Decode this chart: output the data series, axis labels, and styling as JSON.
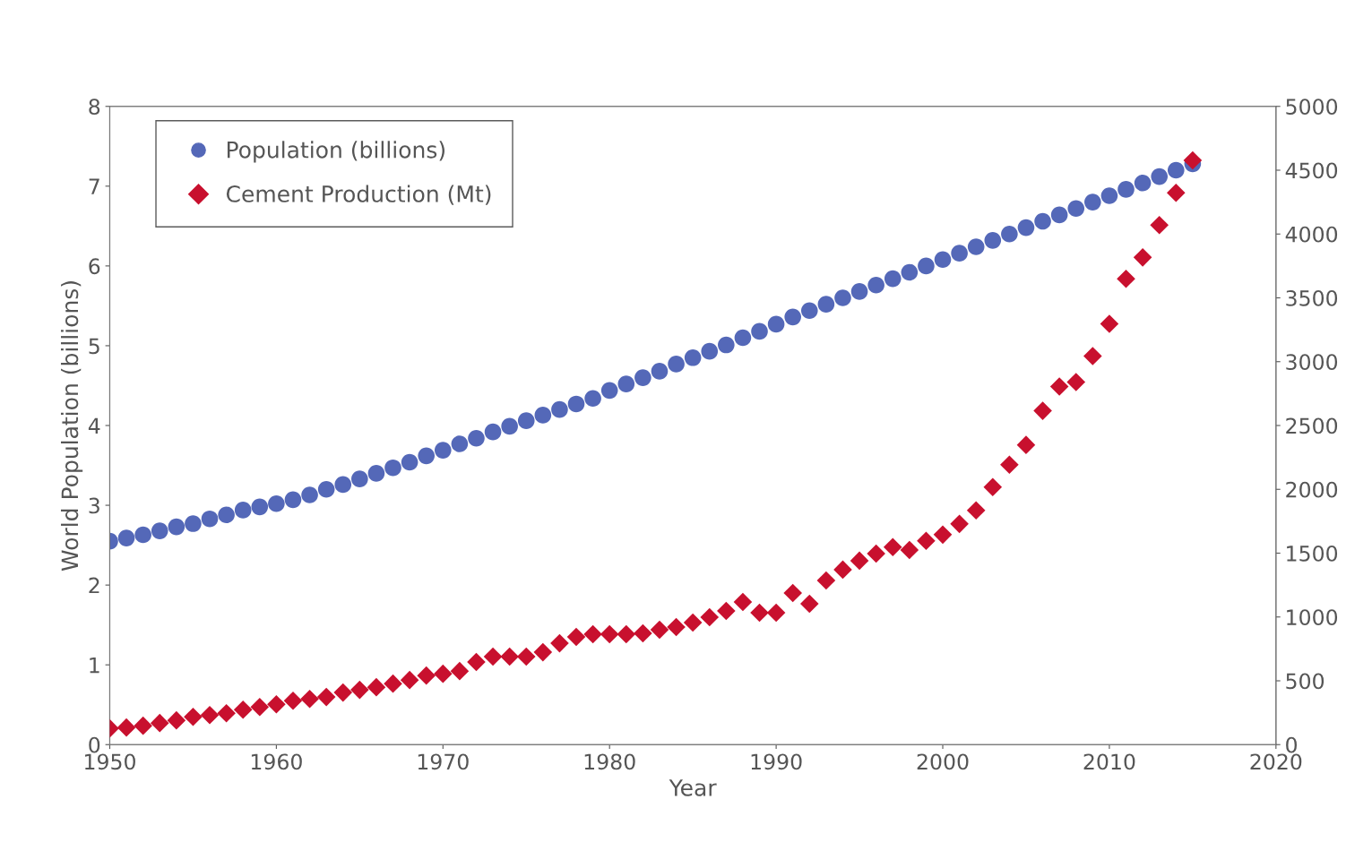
{
  "chart_data": {
    "type": "scatter",
    "xlabel": "Year",
    "ylabel": "World Population (billions)",
    "xlim": [
      1950,
      2020
    ],
    "xticks": [
      1950,
      1960,
      1970,
      1980,
      1990,
      2000,
      2010,
      2020
    ],
    "ylim": [
      0,
      8
    ],
    "yticks": [
      0,
      1,
      2,
      3,
      4,
      5,
      6,
      7,
      8
    ],
    "y2lim": [
      0,
      5000
    ],
    "y2ticks": [
      0,
      500,
      1000,
      1500,
      2000,
      2500,
      3000,
      3500,
      4000,
      4500,
      5000
    ],
    "legend": "top left",
    "grid": false,
    "x": [
      1950,
      1951,
      1952,
      1953,
      1954,
      1955,
      1956,
      1957,
      1958,
      1959,
      1960,
      1961,
      1962,
      1963,
      1964,
      1965,
      1966,
      1967,
      1968,
      1969,
      1970,
      1971,
      1972,
      1973,
      1974,
      1975,
      1976,
      1977,
      1978,
      1979,
      1980,
      1981,
      1982,
      1983,
      1984,
      1985,
      1986,
      1987,
      1988,
      1989,
      1990,
      1991,
      1992,
      1993,
      1994,
      1995,
      1996,
      1997,
      1998,
      1999,
      2000,
      2001,
      2002,
      2003,
      2004,
      2005,
      2006,
      2007,
      2008,
      2009,
      2010,
      2011,
      2012,
      2013,
      2014,
      2015
    ],
    "series": [
      {
        "name": "Population (billions)",
        "color": "#5468b8",
        "marker": "circle",
        "values": [
          2.55,
          2.59,
          2.63,
          2.68,
          2.73,
          2.77,
          2.83,
          2.88,
          2.94,
          2.98,
          3.02,
          3.07,
          3.13,
          3.2,
          3.26,
          3.33,
          3.4,
          3.47,
          3.54,
          3.62,
          3.69,
          3.77,
          3.84,
          3.92,
          3.99,
          4.06,
          4.13,
          4.2,
          4.27,
          4.34,
          4.44,
          4.52,
          4.6,
          4.68,
          4.77,
          4.85,
          4.93,
          5.01,
          5.1,
          5.18,
          5.27,
          5.36,
          5.44,
          5.52,
          5.6,
          5.68,
          5.76,
          5.84,
          5.92,
          6.0,
          6.08,
          6.16,
          6.24,
          6.32,
          6.4,
          6.48,
          6.56,
          6.64,
          6.72,
          6.8,
          6.88,
          6.96,
          7.04,
          7.12,
          7.2,
          7.28
        ]
      },
      {
        "name": "Cement Production (Mt)",
        "color": "#c8102e",
        "marker": "diamond",
        "axis": "y2",
        "values": [
          127,
          134,
          148,
          169,
          190,
          218,
          232,
          246,
          274,
          295,
          316,
          344,
          358,
          373,
          408,
          429,
          450,
          478,
          506,
          541,
          555,
          576,
          647,
          689,
          689,
          689,
          724,
          794,
          844,
          865,
          865,
          865,
          872,
          900,
          921,
          956,
          998,
          1047,
          1118,
          1033,
          1033,
          1188,
          1104,
          1286,
          1371,
          1441,
          1497,
          1547,
          1525,
          1596,
          1645,
          1729,
          1835,
          2018,
          2193,
          2348,
          2615,
          2805,
          2840,
          3044,
          3297,
          3649,
          3817,
          4070,
          4323,
          4577
        ]
      }
    ]
  }
}
